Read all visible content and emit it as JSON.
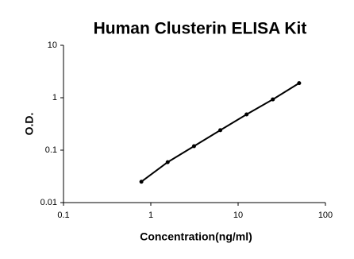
{
  "chart_data": {
    "type": "scatter",
    "title": "Human Clusterin ELISA Kit",
    "x_label": "Concentration(ng/ml)",
    "y_label": "O.D.",
    "x": [
      0.78,
      1.56,
      3.125,
      6.25,
      12.5,
      25,
      50
    ],
    "values": [
      0.025,
      0.059,
      0.119,
      0.24,
      0.48,
      0.93,
      1.9
    ],
    "color": "#000000",
    "line": true,
    "xlog": true,
    "ylog": true,
    "xlim": [
      0.1,
      100
    ],
    "ylim": [
      0.01,
      10
    ],
    "xticks": [
      0.1,
      1,
      10,
      100
    ],
    "yticks": [
      0.01,
      0.1,
      1,
      10
    ]
  }
}
